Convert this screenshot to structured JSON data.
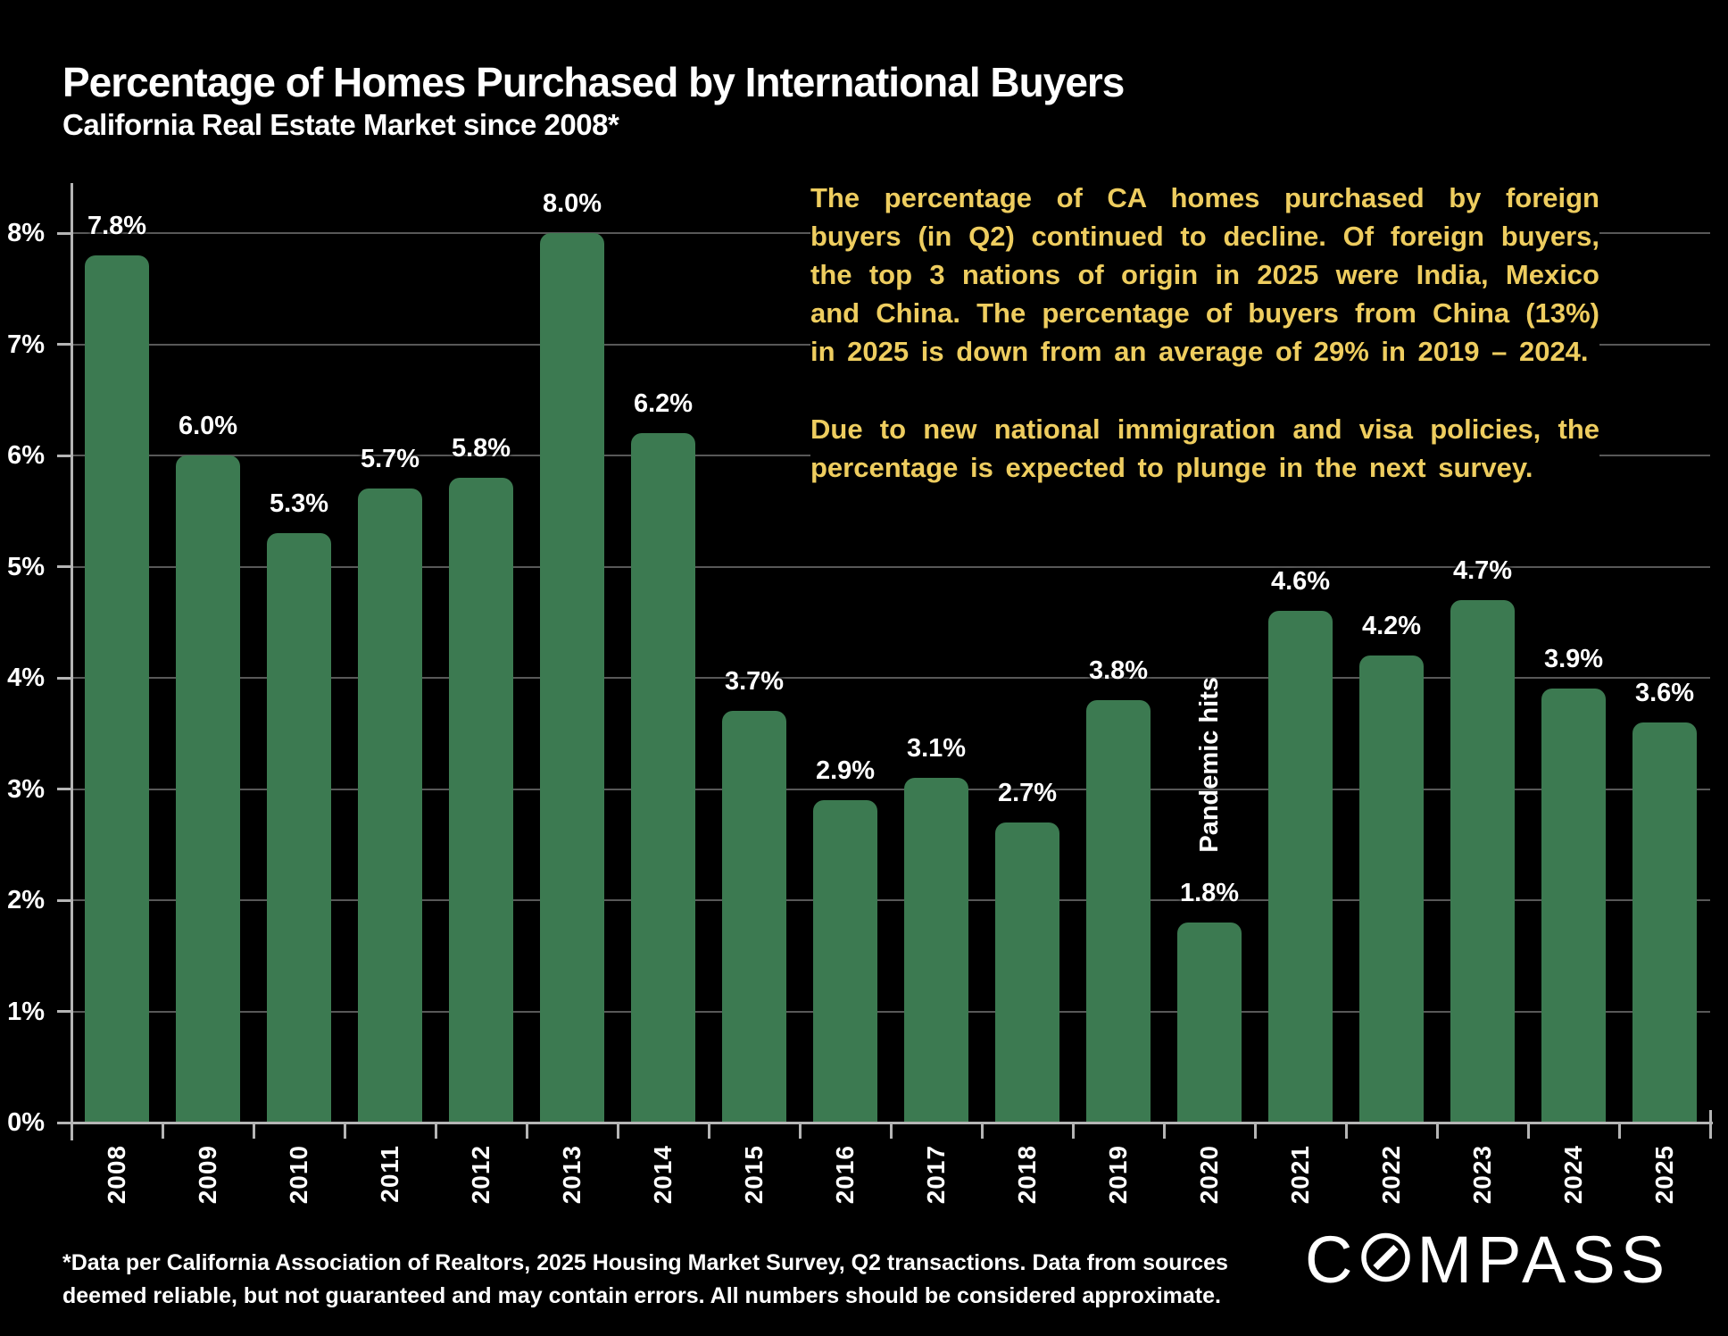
{
  "header": {
    "title": "Percentage of Homes Purchased by International Buyers",
    "subtitle": "California Real Estate Market since 2008*"
  },
  "chart_data": {
    "type": "bar",
    "title": "Percentage of Homes Purchased by International Buyers",
    "subtitle": "California Real Estate Market since 2008*",
    "categories": [
      "2008",
      "2009",
      "2010",
      "2011",
      "2012",
      "2013",
      "2014",
      "2015",
      "2016",
      "2017",
      "2018",
      "2019",
      "2020",
      "2021",
      "2022",
      "2023",
      "2024",
      "2025"
    ],
    "values": [
      7.8,
      6.0,
      5.3,
      5.7,
      5.8,
      8.0,
      6.2,
      3.7,
      2.9,
      3.1,
      2.7,
      3.8,
      1.8,
      4.6,
      4.2,
      4.7,
      3.9,
      3.6
    ],
    "value_label_suffix": "%",
    "ylim": [
      0,
      8
    ],
    "yticks": [
      0,
      1,
      2,
      3,
      4,
      5,
      6,
      7,
      8
    ],
    "ytick_suffix": "%",
    "grid": "horizontal",
    "legend": "none",
    "bar_color": "#3c7a51",
    "event_annotation": {
      "text": "Pandemic hits",
      "category": "2020"
    }
  },
  "commentary": {
    "paragraph1": "The percentage of CA homes purchased by foreign buyers (in Q2) continued to decline. Of foreign buyers, the top 3 nations of origin in 2025 were India, Mexico and China. The percentage of buyers from China (13%) in 2025 is down from an average of 29% in 2019 – 2024.",
    "paragraph2": "Due to new national immigration and visa policies, the percentage is expected to plunge in the next survey."
  },
  "footer": {
    "disclaimer": "*Data per California Association of Realtors, 2025 Housing Market Survey, Q2 transactions. Data from sources deemed reliable, but not guaranteed and may contain errors. All numbers should be considered approximate.",
    "logo_text": "COMPASS"
  },
  "colors": {
    "background": "#000000",
    "bar_green": "#3c7a51",
    "highlight_yellow": "#eecd5f",
    "text_white": "#ffffff",
    "gridline_gray": "#585858",
    "axis_gray": "#b5b5b5"
  }
}
